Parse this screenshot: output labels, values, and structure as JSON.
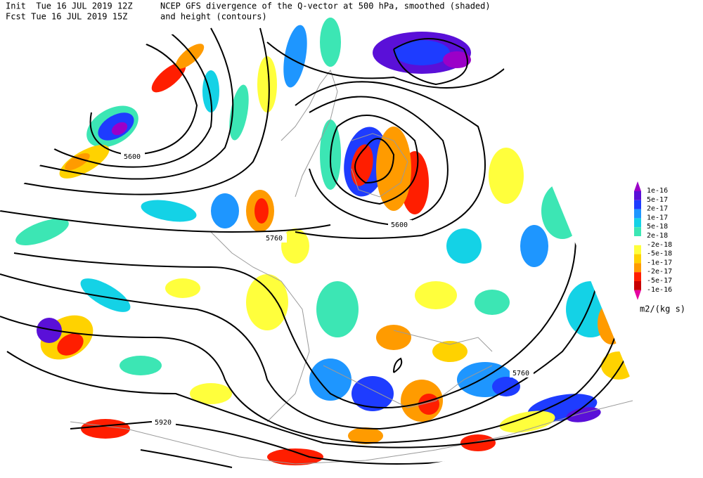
{
  "header": {
    "init": "Init  Tue 16 JUL 2019 12Z",
    "fcst": "Fcst Tue 16 JUL 2019 15Z",
    "title_line1": "NCEP GFS divergence of the Q-vector at 500 hPa, smoothed (shaded)",
    "title_line2": "and height (contours)"
  },
  "contour_labels": [
    "5600",
    "5760",
    "5600",
    "5760",
    "5920"
  ],
  "legend": {
    "labels": [
      "1e-16",
      "5e-17",
      "2e-17",
      "1e-17",
      "5e-18",
      "2e-18",
      "-2e-18",
      "-5e-18",
      "-1e-17",
      "-2e-17",
      "-5e-17",
      "-1e-16"
    ],
    "units": "m2/(kg s)"
  }
}
